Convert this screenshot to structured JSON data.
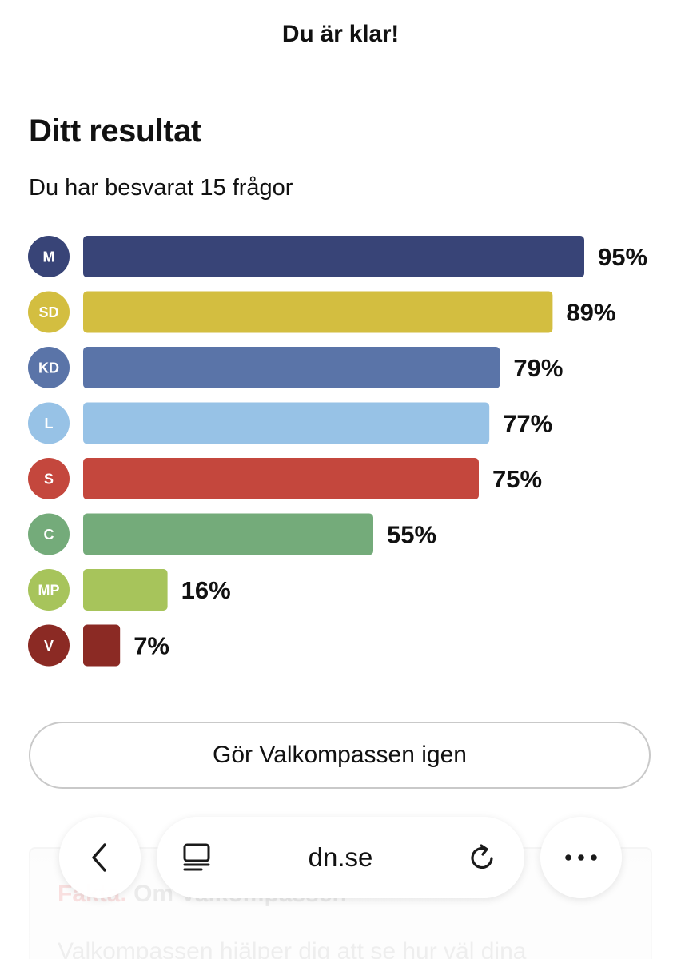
{
  "header": {
    "title": "Du är klar!"
  },
  "result": {
    "heading": "Ditt resultat",
    "subtitle": "Du har besvarat 15 frågor"
  },
  "chart_data": {
    "type": "bar",
    "orientation": "horizontal",
    "categories": [
      "M",
      "SD",
      "KD",
      "L",
      "S",
      "C",
      "MP",
      "V"
    ],
    "values": [
      95,
      89,
      79,
      77,
      75,
      55,
      16,
      7
    ],
    "value_labels": [
      "95%",
      "89%",
      "79%",
      "77%",
      "75%",
      "55%",
      "16%",
      "7%"
    ],
    "colors": [
      "#384477",
      "#D3BE40",
      "#5A74A8",
      "#97C2E6",
      "#C4473D",
      "#74AB7A",
      "#A7C45B",
      "#8B2A24"
    ],
    "xlim": [
      0,
      100
    ],
    "unit": "%",
    "grid": false,
    "legend": "none"
  },
  "actions": {
    "retry_label": "Gör Valkompassen igen"
  },
  "fact_box": {
    "label": "Fakta.",
    "title": "Om Valkompassen",
    "text": "Valkompassen hjälper dig att se hur väl dina"
  },
  "browser": {
    "url": "dn.se",
    "back_icon": "chevron-left-icon",
    "reader_icon": "reader-mode-icon",
    "reload_icon": "reload-icon",
    "more_icon": "ellipsis-icon"
  }
}
